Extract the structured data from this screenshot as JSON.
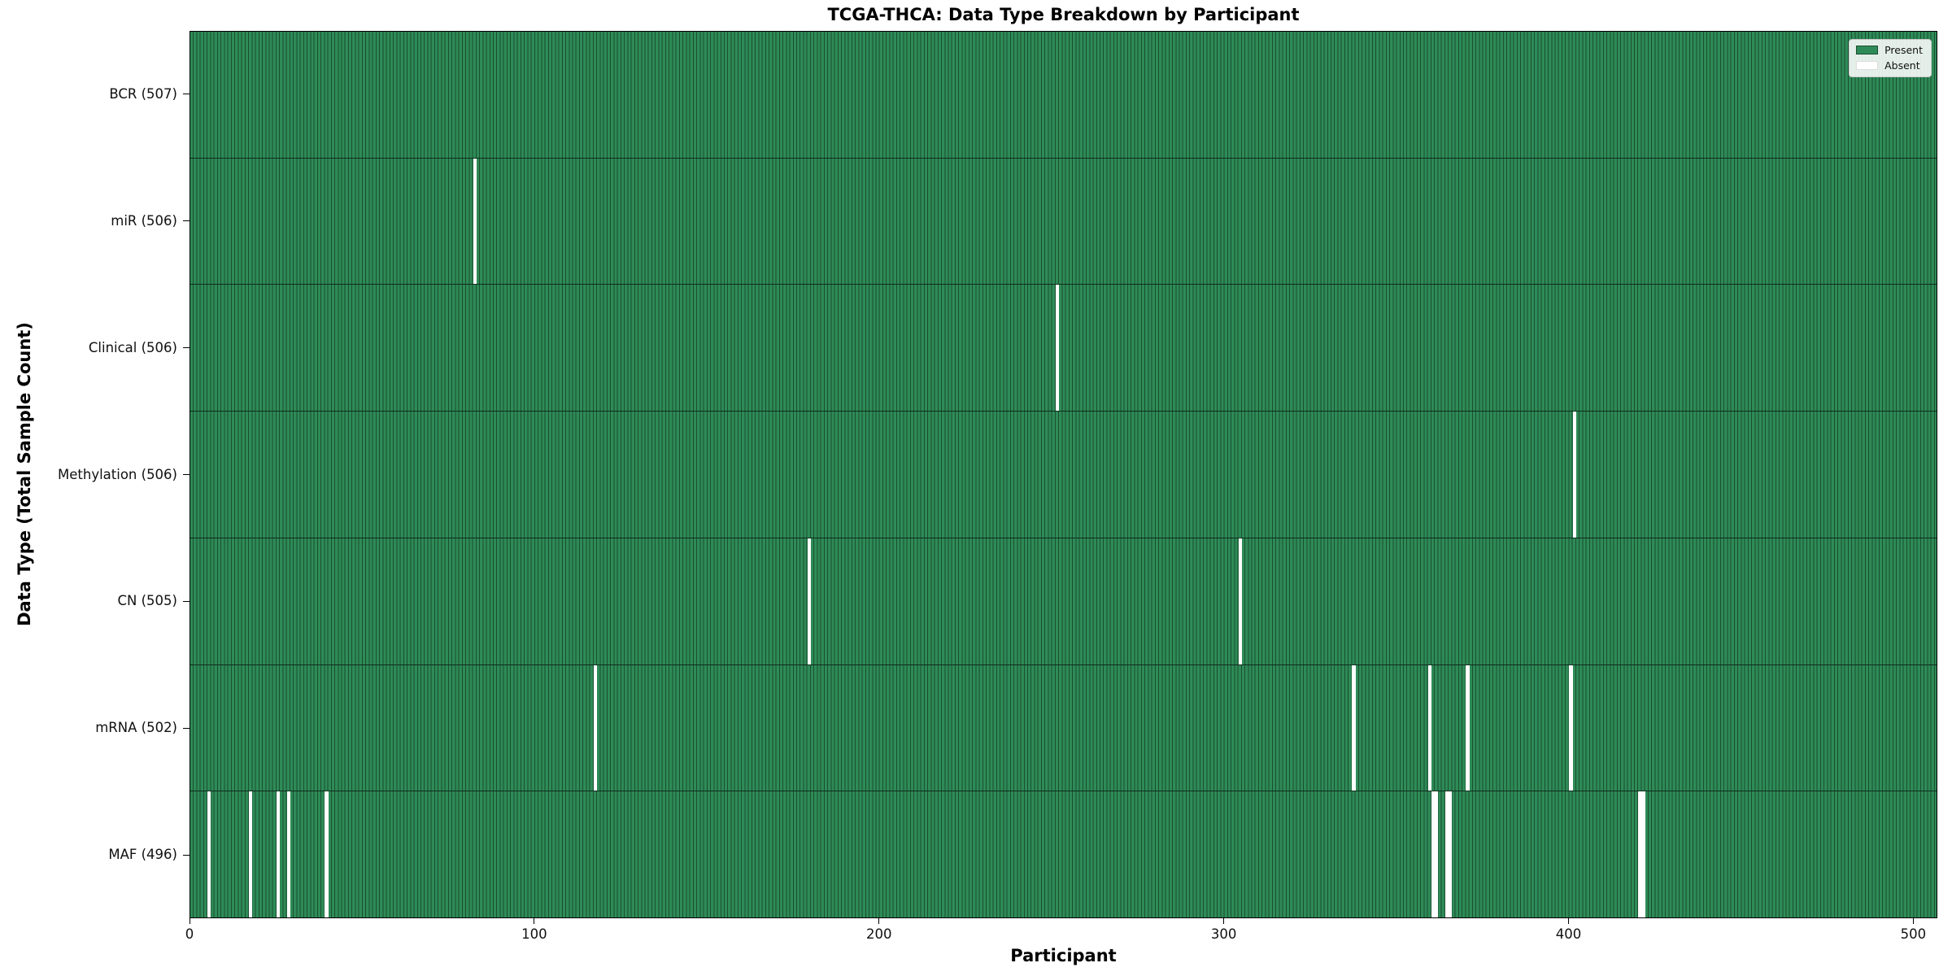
{
  "chart_data": {
    "type": "heatmap",
    "title": "TCGA-THCA: Data Type Breakdown by Participant",
    "xlabel": "Participant",
    "ylabel": "Data Type (Total Sample Count)",
    "x_ticks": [
      0,
      100,
      200,
      300,
      400,
      500
    ],
    "x_range": [
      0,
      507
    ],
    "total_participants": 507,
    "grid": false,
    "legend_position": "upper right",
    "legend": {
      "present_label": "Present",
      "absent_label": "Absent"
    },
    "colors": {
      "present": "#2e8b57",
      "absent": "#ffffff",
      "bar_edge": "#1b4e31"
    },
    "rows": [
      {
        "name": "BCR",
        "label": "BCR (507)",
        "count": 507,
        "absent_participants": []
      },
      {
        "name": "miR",
        "label": "miR (506)",
        "count": 506,
        "absent_participants": [
          82
        ]
      },
      {
        "name": "Clinical",
        "label": "Clinical (506)",
        "count": 506,
        "absent_participants": [
          251
        ]
      },
      {
        "name": "Methylation",
        "label": "Methylation (506)",
        "count": 506,
        "absent_participants": [
          401
        ]
      },
      {
        "name": "CN",
        "label": "CN (505)",
        "count": 505,
        "absent_participants": [
          179,
          304
        ]
      },
      {
        "name": "mRNA",
        "label": "mRNA (502)",
        "count": 502,
        "absent_participants": [
          117,
          337,
          359,
          370,
          400
        ]
      },
      {
        "name": "MAF",
        "label": "MAF (496)",
        "count": 496,
        "absent_participants": [
          5,
          17,
          25,
          28,
          39,
          360,
          361,
          364,
          365,
          420,
          421
        ]
      }
    ]
  }
}
